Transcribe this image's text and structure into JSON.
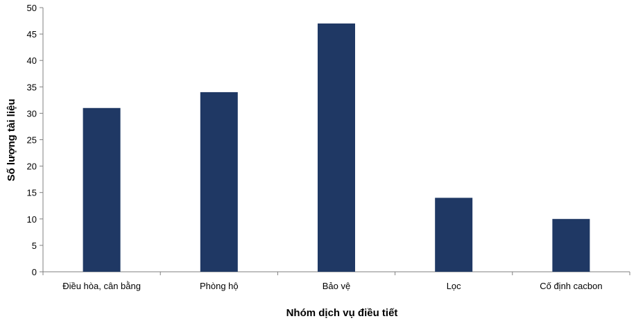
{
  "chart_data": {
    "type": "bar",
    "title": "",
    "xlabel": "Nhóm dịch vụ điều tiết",
    "ylabel": "Số lượng tài liệu",
    "categories": [
      "Điều hòa, cân bằng",
      "Phòng hộ",
      "Bảo vệ",
      "Lọc",
      "Cố định cacbon"
    ],
    "values": [
      31,
      34,
      47,
      14,
      10
    ],
    "ylim": [
      0,
      50
    ],
    "yticks": [
      0,
      5,
      10,
      15,
      20,
      25,
      30,
      35,
      40,
      45,
      50
    ],
    "grid": false,
    "legend": "none",
    "bar_color": "#1f3864",
    "axis_color": "#7f7f7f"
  }
}
